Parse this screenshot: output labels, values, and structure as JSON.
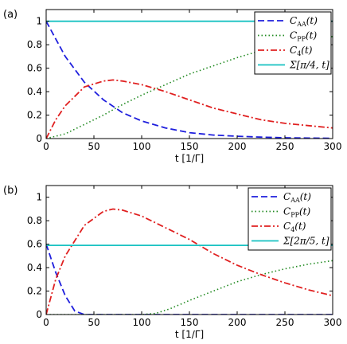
{
  "chart_data": [
    {
      "panel_label": "(a)",
      "type": "line",
      "xlabel": "t [1/Γ]",
      "ylabel": "",
      "xlim": [
        0,
        300
      ],
      "ylim": [
        0,
        1.1
      ],
      "xticks": [
        0,
        50,
        100,
        150,
        200,
        250,
        300
      ],
      "yticks": [
        0,
        0.2,
        0.4,
        0.6,
        0.8,
        1
      ],
      "ytick_labels": [
        "0",
        "0.2",
        "0.4",
        "0.6",
        "0.8",
        "1"
      ],
      "legend_position": "top-right",
      "series": [
        {
          "name": "C_AA(t)",
          "name_main": "C",
          "name_sub": "AA",
          "name_tail": "(t)",
          "style": "dashed",
          "color": "#1f1fdd",
          "x": [
            0,
            20,
            40,
            60,
            80,
            100,
            125,
            150,
            175,
            200,
            225,
            250,
            275,
            300
          ],
          "y": [
            1.0,
            0.7,
            0.48,
            0.33,
            0.22,
            0.15,
            0.09,
            0.05,
            0.03,
            0.02,
            0.012,
            0.007,
            0.004,
            0.002
          ]
        },
        {
          "name": "C_PP(t)",
          "name_main": "C",
          "name_sub": "PP",
          "name_tail": "(t)",
          "style": "dotted",
          "color": "#208a20",
          "x": [
            0,
            20,
            40,
            60,
            80,
            100,
            125,
            150,
            175,
            200,
            225,
            250,
            275,
            300
          ],
          "y": [
            0.0,
            0.04,
            0.12,
            0.2,
            0.29,
            0.37,
            0.46,
            0.55,
            0.62,
            0.69,
            0.75,
            0.8,
            0.84,
            0.87
          ]
        },
        {
          "name": "C_4(t)",
          "name_main": "C",
          "name_sub": "4",
          "name_tail": "(t)",
          "style": "dashdot",
          "color": "#e02020",
          "x": [
            0,
            10,
            20,
            40,
            60,
            70,
            80,
            100,
            125,
            150,
            175,
            200,
            225,
            250,
            275,
            300
          ],
          "y": [
            0.0,
            0.16,
            0.28,
            0.44,
            0.49,
            0.5,
            0.49,
            0.46,
            0.4,
            0.33,
            0.26,
            0.21,
            0.16,
            0.13,
            0.11,
            0.09
          ]
        },
        {
          "name": "Σ[π/4, t]",
          "name_main": "Σ[π/4, t]",
          "name_sub": "",
          "name_tail": "",
          "style": "solid",
          "color": "#19c2c2",
          "x": [
            0,
            300
          ],
          "y": [
            1.0,
            1.0
          ]
        }
      ]
    },
    {
      "panel_label": "(b)",
      "type": "line",
      "xlabel": "t [1/Γ]",
      "ylabel": "",
      "xlim": [
        0,
        300
      ],
      "ylim": [
        0,
        1.1
      ],
      "xticks": [
        0,
        50,
        100,
        150,
        200,
        250,
        300
      ],
      "yticks": [
        0,
        0.2,
        0.4,
        0.6,
        0.8,
        1
      ],
      "ytick_labels": [
        "0",
        "0.2",
        "0.4",
        "0.6",
        "0.8",
        "1"
      ],
      "legend_position": "top-right",
      "series": [
        {
          "name": "C_AA(t)",
          "name_main": "C",
          "name_sub": "AA",
          "name_tail": "(t)",
          "style": "dashed",
          "color": "#1f1fdd",
          "x": [
            0,
            10,
            20,
            30,
            40,
            50,
            100,
            150,
            200,
            250,
            300
          ],
          "y": [
            0.6,
            0.36,
            0.16,
            0.03,
            0.0,
            0.0,
            0.0,
            0.0,
            0.0,
            0.0,
            0.0
          ]
        },
        {
          "name": "C_PP(t)",
          "name_main": "C",
          "name_sub": "PP",
          "name_tail": "(t)",
          "style": "dotted",
          "color": "#208a20",
          "x": [
            0,
            50,
            100,
            115,
            130,
            150,
            175,
            200,
            225,
            250,
            275,
            300
          ],
          "y": [
            0.0,
            0.0,
            0.0,
            0.01,
            0.05,
            0.12,
            0.2,
            0.28,
            0.34,
            0.39,
            0.43,
            0.46
          ]
        },
        {
          "name": "C_4(t)",
          "name_main": "C",
          "name_sub": "4",
          "name_tail": "(t)",
          "style": "dashdot",
          "color": "#e02020",
          "x": [
            0,
            10,
            20,
            40,
            60,
            70,
            80,
            100,
            125,
            150,
            175,
            200,
            225,
            250,
            275,
            300
          ],
          "y": [
            0.0,
            0.3,
            0.5,
            0.76,
            0.88,
            0.9,
            0.89,
            0.84,
            0.74,
            0.64,
            0.52,
            0.42,
            0.34,
            0.27,
            0.21,
            0.16
          ]
        },
        {
          "name": "Σ[2π/5, t]",
          "name_main": "Σ[2π/5, t]",
          "name_sub": "",
          "name_tail": "",
          "style": "solid",
          "color": "#19c2c2",
          "x": [
            0,
            300
          ],
          "y": [
            0.59,
            0.59
          ]
        }
      ]
    }
  ]
}
